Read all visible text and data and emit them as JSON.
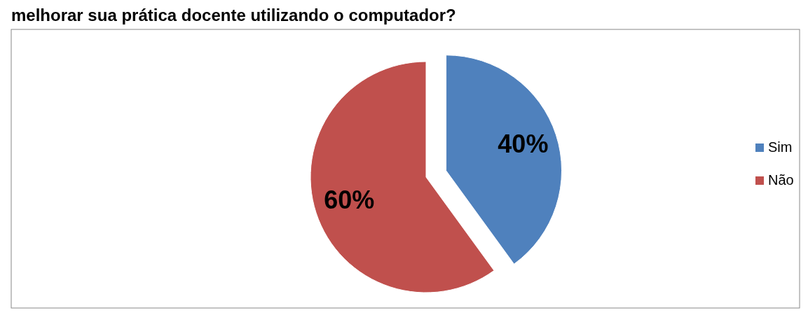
{
  "chart_data": {
    "type": "pie",
    "title": "melhorar sua prática docente utilizando o computador?",
    "categories": [
      "Sim",
      "Não"
    ],
    "values": [
      40,
      60
    ],
    "colors": [
      "#4f81bd",
      "#c0504d"
    ],
    "value_labels": [
      "40%",
      "60%"
    ],
    "legend": "right"
  }
}
